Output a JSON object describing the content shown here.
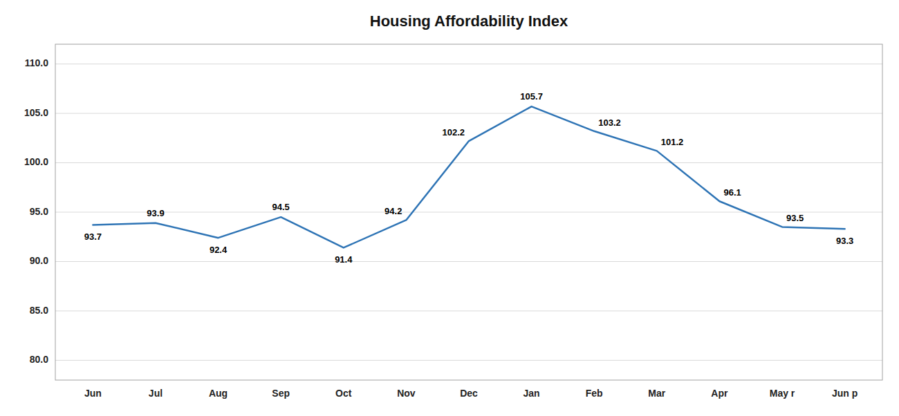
{
  "chart_data": {
    "type": "line",
    "title": "Housing Affordability Index",
    "categories": [
      "Jun",
      "Jul",
      "Aug",
      "Sep",
      "Oct",
      "Nov",
      "Dec",
      "Jan",
      "Feb",
      "Mar",
      "Apr",
      "May r",
      "Jun p"
    ],
    "values": [
      93.7,
      93.9,
      92.4,
      94.5,
      91.4,
      94.2,
      102.2,
      105.7,
      103.2,
      101.2,
      96.1,
      93.5,
      93.3
    ],
    "color": "#2E74B5",
    "ylim": [
      78.0,
      112.0
    ],
    "yticks": [
      {
        "value": 80.0,
        "label": "80.0"
      },
      {
        "value": 85.0,
        "label": "85.0"
      },
      {
        "value": 90.0,
        "label": "90.0"
      },
      {
        "value": 95.0,
        "label": "95.0"
      },
      {
        "value": 100.0,
        "label": "100.0"
      },
      {
        "value": 105.0,
        "label": "105.0"
      },
      {
        "value": 110.0,
        "label": "110.0"
      }
    ],
    "grid": true,
    "data_labels": true
  }
}
